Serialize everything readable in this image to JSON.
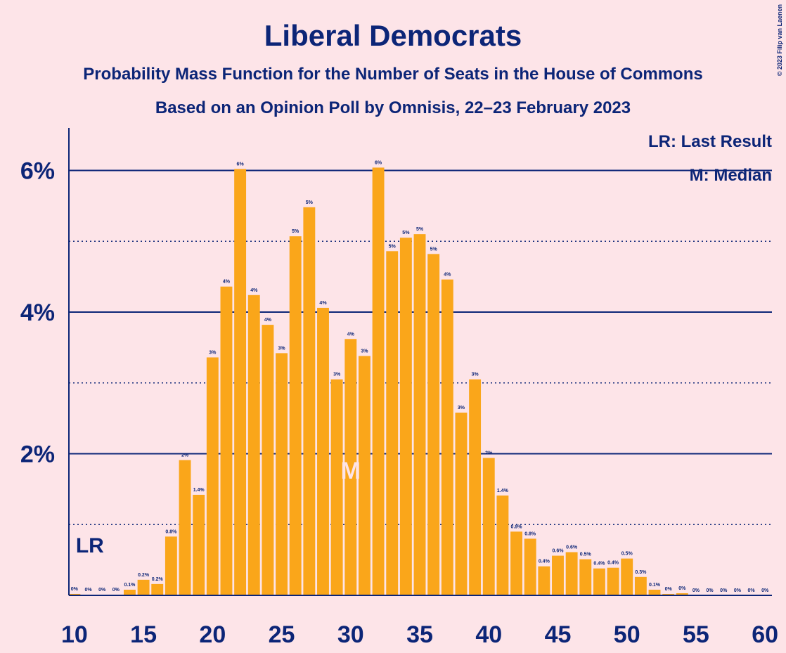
{
  "chart_data": {
    "type": "bar",
    "title": "Liberal Democrats",
    "subtitle": "Probability Mass Function for the Number of Seats in the House of Commons",
    "subtitle2": "Based on an Opinion Poll by Omnisis, 22–23 February 2023",
    "copyright": "© 2023 Filip van Laenen",
    "x": [
      10,
      11,
      12,
      13,
      14,
      15,
      16,
      17,
      18,
      19,
      20,
      21,
      22,
      23,
      24,
      25,
      26,
      27,
      28,
      29,
      30,
      31,
      32,
      33,
      34,
      35,
      36,
      37,
      38,
      39,
      40,
      41,
      42,
      43,
      44,
      45,
      46,
      47,
      48,
      49,
      50,
      51,
      52,
      53,
      54,
      55,
      56,
      57,
      58,
      59,
      60
    ],
    "values": [
      0.02,
      0.01,
      0.01,
      0.01,
      0.08,
      0.22,
      0.16,
      0.83,
      1.91,
      1.42,
      3.36,
      4.36,
      6.02,
      4.24,
      3.82,
      3.42,
      5.07,
      5.48,
      4.06,
      3.05,
      3.62,
      3.38,
      6.04,
      4.86,
      5.05,
      5.1,
      4.82,
      4.46,
      2.58,
      3.05,
      1.94,
      1.41,
      0.9,
      0.8,
      0.41,
      0.56,
      0.61,
      0.51,
      0.38,
      0.39,
      0.52,
      0.26,
      0.08,
      0.02,
      0.03,
      0,
      0,
      0,
      0,
      0,
      0
    ],
    "value_labels": [
      "0%",
      "0%",
      "0%",
      "0%",
      "0.1%",
      "0.2%",
      "0.2%",
      "0.8%",
      "2%",
      "1.4%",
      "3%",
      "4%",
      "6%",
      "4%",
      "4%",
      "3%",
      "5%",
      "5%",
      "4%",
      "3%",
      "4%",
      "3%",
      "6%",
      "5%",
      "5%",
      "5%",
      "5%",
      "4%",
      "3%",
      "3%",
      "2%",
      "1.4%",
      "0.9%",
      "0.8%",
      "0.4%",
      "0.6%",
      "0.6%",
      "0.5%",
      "0.4%",
      "0.4%",
      "0.5%",
      "0.3%",
      "0.1%",
      "0%",
      "0%",
      "0%",
      "0%",
      "0%",
      "0%",
      "0%",
      "0%"
    ],
    "color": "#faa61a",
    "xlim": [
      9.6,
      60.5
    ],
    "xticks": [
      10,
      15,
      20,
      25,
      30,
      35,
      40,
      45,
      50,
      55,
      60
    ],
    "ylim": [
      0,
      6.6
    ],
    "yticks": [
      {
        "value": 2,
        "label": "2%"
      },
      {
        "value": 4,
        "label": "4%"
      },
      {
        "value": 6,
        "label": "6%"
      }
    ],
    "dotted_gridlines": [
      1,
      3,
      5
    ],
    "last_result": 10,
    "last_result_label": "LR",
    "median": 30,
    "median_label": "M",
    "legend": [
      "LR: Last Result",
      "M: Median"
    ]
  }
}
